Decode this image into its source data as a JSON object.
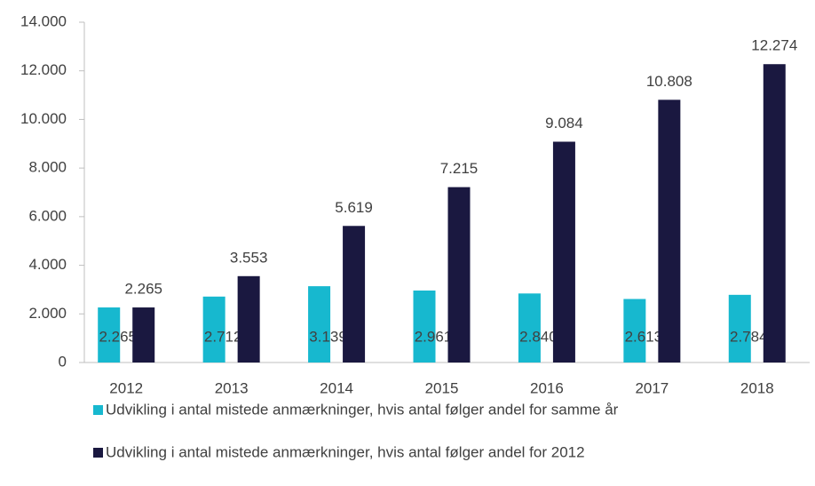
{
  "chart_data": {
    "type": "bar",
    "categories": [
      "2012",
      "2013",
      "2014",
      "2015",
      "2016",
      "2017",
      "2018"
    ],
    "series": [
      {
        "name": "Udvikling i antal mistede anmærkninger, hvis antal følger andel for samme år",
        "color": "#17b8cf",
        "values": [
          2265,
          2712,
          3139,
          2961,
          2840,
          2613,
          2784
        ],
        "value_labels": [
          "2.265",
          "2.712",
          "3.139",
          "2.961",
          "2.840",
          "2.613",
          "2.784"
        ]
      },
      {
        "name": "Udvikling i antal mistede anmærkninger, hvis antal følger andel for 2012",
        "color": "#1a1840",
        "values": [
          2265,
          3553,
          5619,
          7215,
          9084,
          10808,
          12274
        ],
        "value_labels": [
          "2.265",
          "3.553",
          "5.619",
          "7.215",
          "9.084",
          "10.808",
          "12.274"
        ]
      }
    ],
    "ylim": [
      0,
      14000
    ],
    "yticks": [
      0,
      {
        "value": 2000,
        "label": "2.000"
      },
      {
        "value": 4000,
        "label": "4.000"
      },
      {
        "value": 6000,
        "label": "6.000"
      },
      {
        "value": 8000,
        "label": "8.000"
      },
      {
        "value": 10000,
        "label": "10.000"
      },
      {
        "value": 12000,
        "label": "12.000"
      },
      {
        "value": 14000,
        "label": "14.000"
      }
    ],
    "grid": false,
    "legend": "bottom"
  }
}
